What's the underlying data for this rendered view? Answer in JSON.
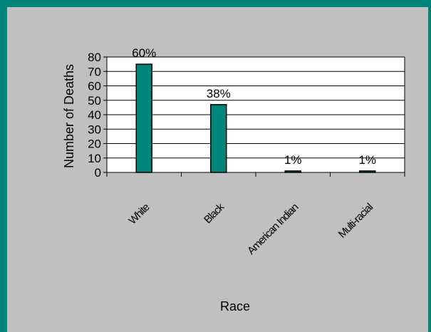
{
  "chart_data": {
    "type": "bar",
    "title": "",
    "xlabel": "Race",
    "ylabel": "Number of Deaths",
    "ylim": [
      0,
      80
    ],
    "yticks": [
      0,
      10,
      20,
      30,
      40,
      50,
      60,
      70,
      80
    ],
    "categories": [
      "White",
      "Black",
      "American Indian",
      "Multi-racial"
    ],
    "values": [
      75,
      47,
      1,
      1
    ],
    "data_labels": [
      "60%",
      "38%",
      "1%",
      "1%"
    ],
    "grid": true,
    "legend": "none",
    "bar_color": "#00857a",
    "plot_background": "#ffffff",
    "chart_background": "#c0c0c0"
  }
}
